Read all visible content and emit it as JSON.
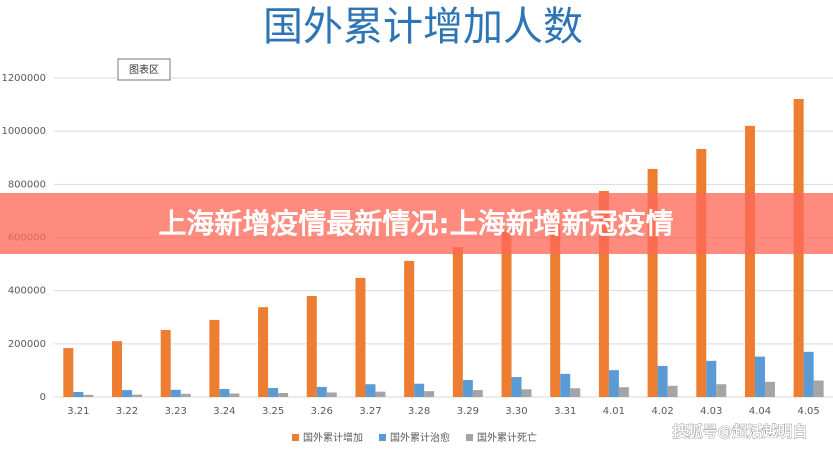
{
  "chart_data": {
    "type": "bar",
    "title": "国外累计增加人数",
    "categories": [
      "3.21",
      "3.22",
      "3.23",
      "3.24",
      "3.25",
      "3.26",
      "3.27",
      "3.28",
      "3.29",
      "3.30",
      "3.31",
      "4.01",
      "4.02",
      "4.03",
      "4.04",
      "4.05"
    ],
    "series": [
      {
        "name": "国外累计增加",
        "color": "#ed7d31",
        "values": [
          184000,
          210000,
          252000,
          290000,
          338000,
          380000,
          448000,
          512000,
          564000,
          630000,
          690000,
          775000,
          858000,
          933000,
          1020000,
          1121000
        ]
      },
      {
        "name": "国外累计治愈",
        "color": "#5b9bd5",
        "values": [
          19000,
          26000,
          27000,
          30000,
          34000,
          38000,
          48000,
          50000,
          64000,
          75000,
          87000,
          101000,
          117000,
          136000,
          152000,
          170000
        ]
      },
      {
        "name": "国外累计死亡",
        "color": "#a5a5a5",
        "values": [
          8000,
          9000,
          12000,
          13000,
          15000,
          17000,
          20000,
          22000,
          26000,
          29000,
          33000,
          37000,
          42000,
          48000,
          57000,
          62000
        ]
      }
    ],
    "ylim": [
      0,
      1200000
    ],
    "yticks": [
      0,
      200000,
      400000,
      600000,
      800000,
      1000000,
      1200000
    ],
    "grid": true,
    "legend": "bottom"
  },
  "tooltip": "图表区",
  "banner": "上海新增疫情最新情况:上海新增新冠疫情",
  "watermark": "搜狐号@超活越明白"
}
